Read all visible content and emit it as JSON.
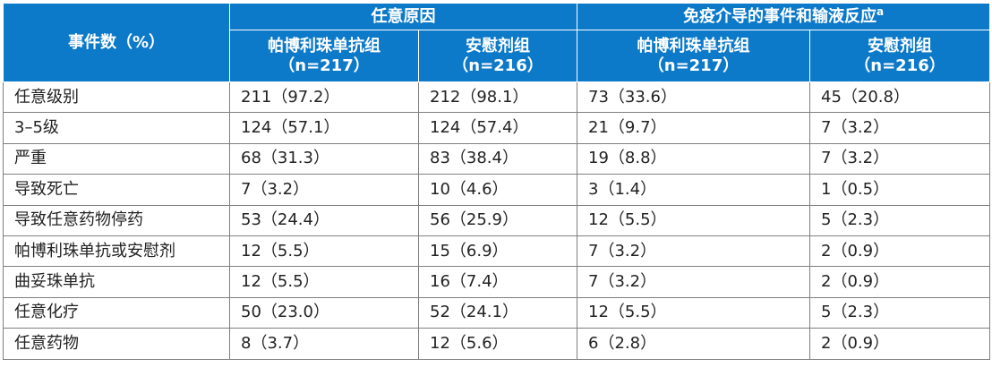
{
  "header": {
    "row_label": "事件数（%）",
    "groups": [
      "任意原因",
      "免疫介导的事件和输液反应"
    ],
    "group2_footnote": "a",
    "subcolumns": [
      {
        "line1": "帕博利珠单抗组",
        "line2": "（n=217）"
      },
      {
        "line1": "安慰剂组",
        "line2": "（n=216）"
      },
      {
        "line1": "帕博利珠单抗组",
        "line2": "（n=217）"
      },
      {
        "line1": "安慰剂组",
        "line2": "（n=216）"
      }
    ]
  },
  "rows": [
    {
      "label": "任意级别",
      "cells": [
        "211（97.2）",
        "212（98.1）",
        "73（33.6）",
        "45（20.8）"
      ]
    },
    {
      "label": "3–5级",
      "cells": [
        "124（57.1）",
        "124（57.4）",
        "21（9.7）",
        "7（3.2）"
      ]
    },
    {
      "label": "严重",
      "cells": [
        "68（31.3）",
        "83（38.4）",
        "19（8.8）",
        "7（3.2）"
      ]
    },
    {
      "label": "导致死亡",
      "cells": [
        "7（3.2）",
        "10（4.6）",
        "3（1.4）",
        "1（0.5）"
      ]
    },
    {
      "label": "导致任意药物停药",
      "cells": [
        "53（24.4）",
        "56（25.9）",
        "12（5.5）",
        "5（2.3）"
      ]
    },
    {
      "label": "帕博利珠单抗或安慰剂",
      "cells": [
        "12（5.5）",
        "15（6.9）",
        "7（3.2）",
        "2（0.9）"
      ]
    },
    {
      "label": "曲妥珠单抗",
      "cells": [
        "12（5.5）",
        "16（7.4）",
        "7（3.2）",
        "2（0.9）"
      ]
    },
    {
      "label": "任意化疗",
      "cells": [
        "50（23.0）",
        "52（24.1）",
        "12（5.5）",
        "5（2.3）"
      ]
    },
    {
      "label": "任意药物",
      "cells": [
        "8（3.7）",
        "12（5.6）",
        "6（2.8）",
        "2（0.9）"
      ]
    }
  ]
}
